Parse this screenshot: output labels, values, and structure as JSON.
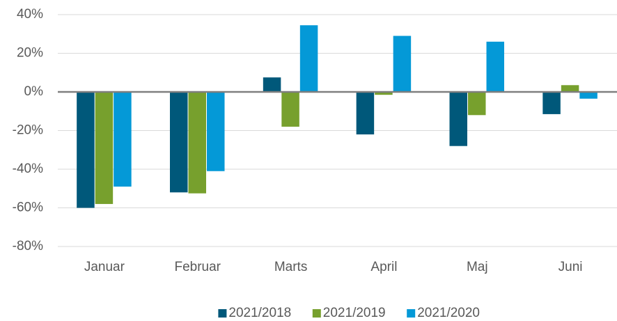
{
  "chart_data": {
    "type": "bar",
    "categories": [
      "Januar",
      "Februar",
      "Marts",
      "April",
      "Maj",
      "Juni"
    ],
    "series": [
      {
        "name": "2021/2018",
        "color": "#00587a",
        "values": [
          -60,
          -52,
          7.5,
          -22,
          -28,
          -11.5
        ]
      },
      {
        "name": "2021/2019",
        "color": "#77a02d",
        "values": [
          -58,
          -52.5,
          -18,
          -1.5,
          -12,
          3.5
        ]
      },
      {
        "name": "2021/2020",
        "color": "#0499d7",
        "values": [
          -49,
          -41,
          34.5,
          29,
          26,
          -3.5
        ]
      }
    ],
    "ylim": [
      -80,
      40
    ],
    "yticks": [
      {
        "value": -80,
        "label": "-80%"
      },
      {
        "value": -60,
        "label": "-60%"
      },
      {
        "value": -40,
        "label": "-40%"
      },
      {
        "value": -20,
        "label": "-20%"
      },
      {
        "value": 0,
        "label": "0%"
      },
      {
        "value": 20,
        "label": "20%"
      },
      {
        "value": 40,
        "label": "40%"
      }
    ],
    "grid": true,
    "legend": "bottom"
  }
}
